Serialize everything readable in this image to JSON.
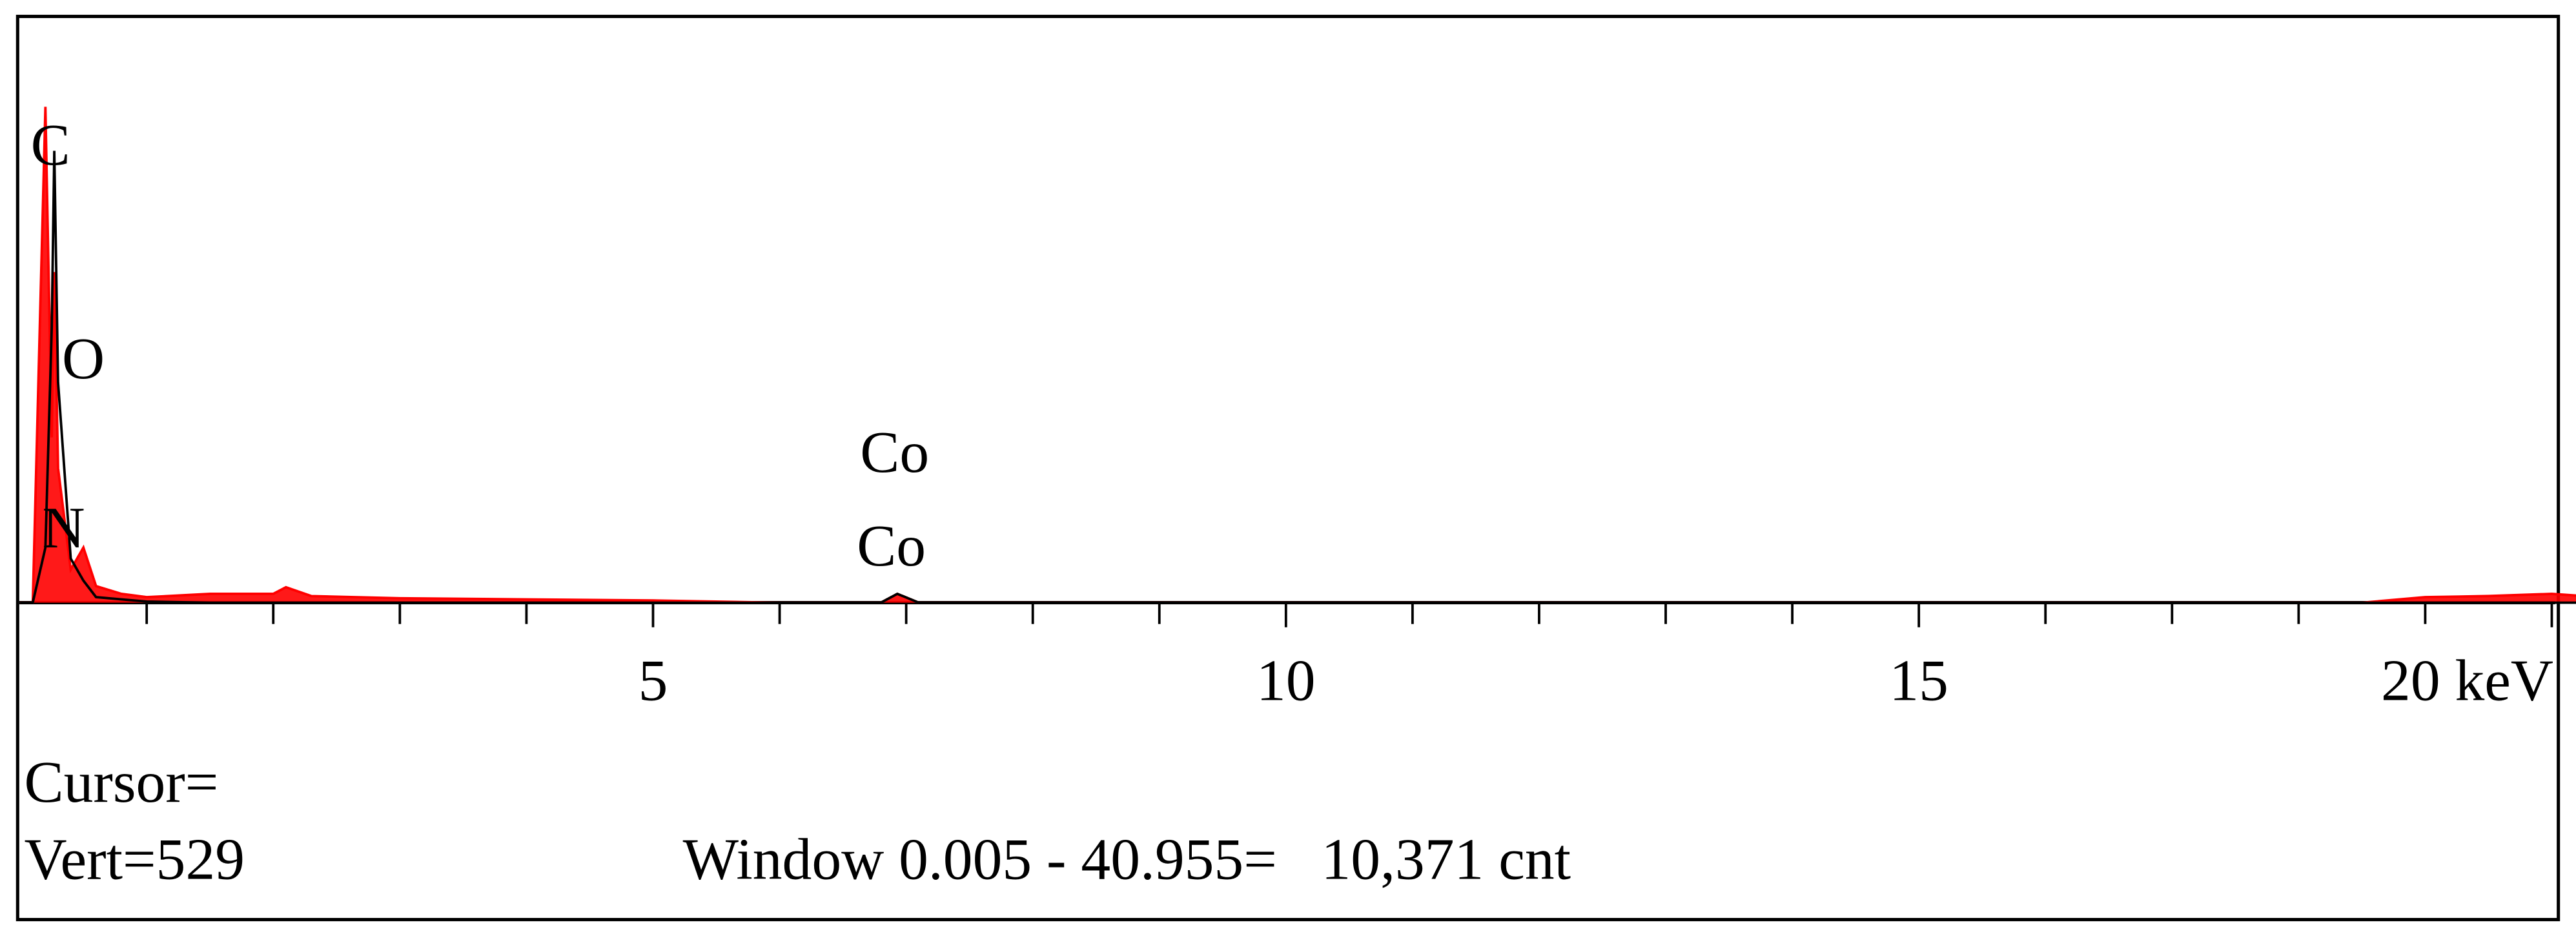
{
  "chart_data": {
    "type": "line",
    "x": [
      0,
      0.1,
      0.2,
      0.25,
      0.27,
      0.3,
      0.4,
      0.5,
      0.6,
      0.8,
      1.0,
      1.5,
      2.0,
      2.1,
      2.3,
      3.0,
      4.0,
      5.0,
      6.0,
      6.8,
      6.93,
      7.1,
      8,
      10,
      15,
      18.5,
      19,
      19.5,
      20,
      20.5,
      20.6
    ],
    "series": [
      {
        "color": "#ff0000",
        "values": [
          0,
          0,
          450,
          150,
          300,
          122,
          30,
          50,
          15,
          8,
          5,
          8,
          8,
          14,
          6,
          4,
          3,
          2,
          0,
          0,
          8,
          0,
          0,
          0,
          0,
          0,
          5,
          6,
          8,
          4,
          0
        ]
      },
      {
        "color": "#000000",
        "values": [
          0,
          0,
          50,
          250,
          410,
          200,
          40,
          20,
          5,
          3,
          1,
          0,
          0,
          0,
          0,
          0,
          0,
          0,
          0,
          0,
          8,
          0,
          0,
          0,
          0,
          0,
          0,
          0,
          0,
          0,
          0
        ]
      }
    ],
    "xlim": [
      0,
      20
    ],
    "ylim": [
      0,
      529
    ],
    "xticks": [
      5,
      10,
      15,
      {
        "value": 20,
        "label": "20 keV"
      }
    ],
    "xminor_ticks": [
      1,
      2,
      3,
      4,
      6,
      7,
      8,
      9,
      11,
      12,
      13,
      14,
      16,
      17,
      18,
      19
    ],
    "annotations": [
      "C",
      "O",
      "N",
      "Co",
      "Co"
    ],
    "status": {
      "cursor": "Cursor=",
      "vert": "Vert=529",
      "window": "Window 0.005 - 40.955=   10,371 cnt"
    }
  }
}
